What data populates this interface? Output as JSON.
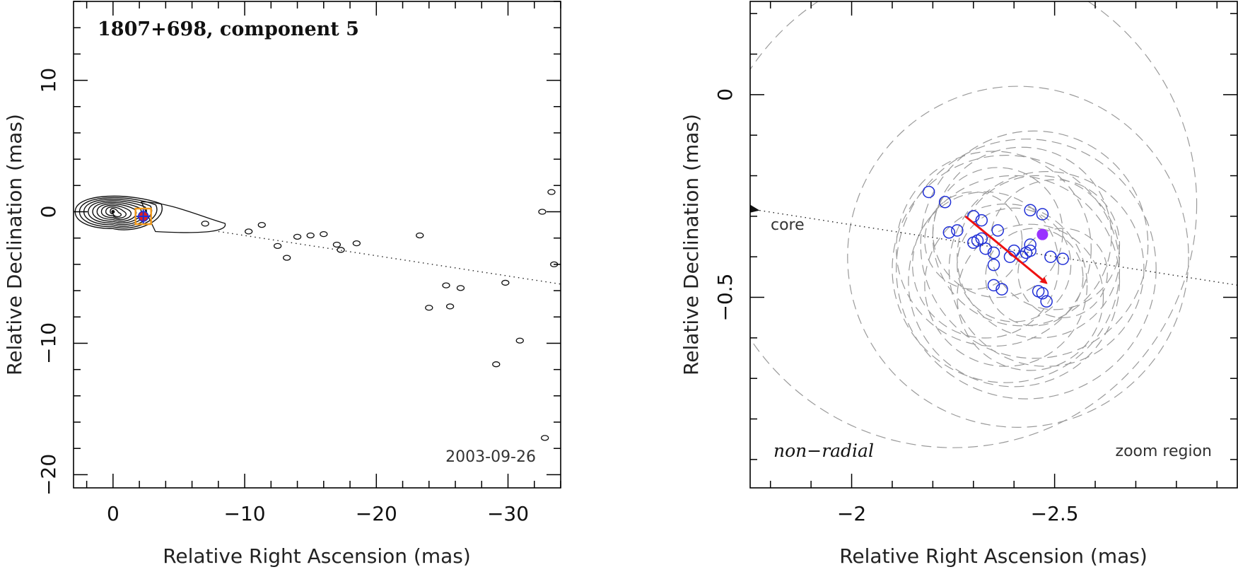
{
  "chart_data": [
    {
      "type": "scatter",
      "panel": "left",
      "title": "1807+698, component 5",
      "xlabel": "Relative Right Ascension (mas)",
      "ylabel": "Relative Declination (mas)",
      "xlim": [
        3,
        -34
      ],
      "ylim": [
        -21,
        16
      ],
      "xticks": [
        0,
        -10,
        -20,
        -30
      ],
      "xtick_labels": [
        "0",
        "−10",
        "−20",
        "−30"
      ],
      "yticks": [
        10,
        0,
        -10,
        -20
      ],
      "ytick_labels": [
        "10",
        "0",
        "−10",
        "−20"
      ],
      "date": "2003-09-26",
      "core_position": [
        0,
        0
      ],
      "component_position": [
        -2.3,
        -0.35
      ],
      "jet_direction_line": {
        "from": [
          -8,
          -1.5
        ],
        "to": [
          -34,
          -5.5
        ]
      },
      "contour_levels": 9,
      "jet_knots": [
        {
          "x": -7.0,
          "y": -0.9
        },
        {
          "x": -10.3,
          "y": -1.5
        },
        {
          "x": -11.3,
          "y": -1.0
        },
        {
          "x": -12.5,
          "y": -2.6
        },
        {
          "x": -13.2,
          "y": -3.5
        },
        {
          "x": -14.0,
          "y": -1.9
        },
        {
          "x": -15.0,
          "y": -1.8
        },
        {
          "x": -16.0,
          "y": -1.7
        },
        {
          "x": -17.0,
          "y": -2.5
        },
        {
          "x": -17.3,
          "y": -2.9
        },
        {
          "x": -18.5,
          "y": -2.4
        },
        {
          "x": -23.3,
          "y": -1.8
        },
        {
          "x": -24.0,
          "y": -7.3
        },
        {
          "x": -25.3,
          "y": -5.6
        },
        {
          "x": -26.4,
          "y": -5.8
        },
        {
          "x": -25.6,
          "y": -7.2
        },
        {
          "x": -29.8,
          "y": -5.4
        },
        {
          "x": -30.9,
          "y": -9.8
        },
        {
          "x": -29.1,
          "y": -11.6
        },
        {
          "x": -32.8,
          "y": -17.2
        },
        {
          "x": -33.5,
          "y": -4.0
        },
        {
          "x": -33.3,
          "y": 1.5
        },
        {
          "x": -32.6,
          "y": 0.0
        }
      ]
    },
    {
      "type": "scatter",
      "panel": "right",
      "xlabel": "Relative Right Ascension (mas)",
      "ylabel": "Relative Declination (mas)",
      "xlim": [
        -1.75,
        -2.95
      ],
      "ylim": [
        -0.97,
        0.23
      ],
      "xticks": [
        -2,
        -2.5
      ],
      "xtick_labels": [
        "−2",
        "−2.5"
      ],
      "yticks": [
        0,
        -0.5
      ],
      "ytick_labels": [
        "0",
        "−0.5"
      ],
      "annotation_left": "non−radial",
      "annotation_right": "zoom region",
      "core_label": "core",
      "core_direction_line": {
        "from": [
          -2.95,
          -0.47
        ],
        "to": [
          -1.77,
          -0.285
        ]
      },
      "component_positions": [
        {
          "x": -2.19,
          "y": -0.24
        },
        {
          "x": -2.23,
          "y": -0.265
        },
        {
          "x": -2.24,
          "y": -0.34
        },
        {
          "x": -2.26,
          "y": -0.335
        },
        {
          "x": -2.3,
          "y": -0.3
        },
        {
          "x": -2.32,
          "y": -0.31
        },
        {
          "x": -2.3,
          "y": -0.365
        },
        {
          "x": -2.31,
          "y": -0.36
        },
        {
          "x": -2.32,
          "y": -0.355
        },
        {
          "x": -2.33,
          "y": -0.38
        },
        {
          "x": -2.35,
          "y": -0.39
        },
        {
          "x": -2.36,
          "y": -0.335
        },
        {
          "x": -2.35,
          "y": -0.42
        },
        {
          "x": -2.39,
          "y": -0.4
        },
        {
          "x": -2.4,
          "y": -0.385
        },
        {
          "x": -2.42,
          "y": -0.4
        },
        {
          "x": -2.43,
          "y": -0.39
        },
        {
          "x": -2.44,
          "y": -0.385
        },
        {
          "x": -2.44,
          "y": -0.37
        },
        {
          "x": -2.44,
          "y": -0.285
        },
        {
          "x": -2.47,
          "y": -0.295
        },
        {
          "x": -2.35,
          "y": -0.47
        },
        {
          "x": -2.37,
          "y": -0.48
        },
        {
          "x": -2.46,
          "y": -0.485
        },
        {
          "x": -2.47,
          "y": -0.49
        },
        {
          "x": -2.48,
          "y": -0.51
        },
        {
          "x": -2.49,
          "y": -0.4
        },
        {
          "x": -2.52,
          "y": -0.405
        }
      ],
      "mean_position": {
        "x": -2.47,
        "y": -0.345,
        "color": "#9933ff"
      },
      "motion_vector": {
        "from": [
          -2.28,
          -0.3
        ],
        "to": [
          -2.48,
          -0.465
        ],
        "color": "#ee1111"
      },
      "uncertainty_ellipses": [
        {
          "x": -2.41,
          "y": -0.4,
          "r": 0.42
        },
        {
          "x": -2.43,
          "y": -0.43,
          "r": 0.32
        },
        {
          "x": -2.38,
          "y": -0.43,
          "r": 0.28
        },
        {
          "x": -2.45,
          "y": -0.37,
          "r": 0.28
        },
        {
          "x": -2.4,
          "y": -0.46,
          "r": 0.26
        },
        {
          "x": -2.35,
          "y": -0.38,
          "r": 0.24
        },
        {
          "x": -2.48,
          "y": -0.43,
          "r": 0.24
        },
        {
          "x": -2.42,
          "y": -0.35,
          "r": 0.22
        },
        {
          "x": -2.38,
          "y": -0.47,
          "r": 0.2
        },
        {
          "x": -2.46,
          "y": -0.4,
          "r": 0.2
        },
        {
          "x": -2.33,
          "y": -0.42,
          "r": 0.18
        },
        {
          "x": -2.44,
          "y": -0.5,
          "r": 0.18
        },
        {
          "x": -2.5,
          "y": -0.37,
          "r": 0.16
        },
        {
          "x": -2.36,
          "y": -0.34,
          "r": 0.16
        },
        {
          "x": -2.4,
          "y": -0.42,
          "r": 0.14
        },
        {
          "x": -2.45,
          "y": -0.45,
          "r": 0.12
        },
        {
          "x": -2.3,
          "y": -0.36,
          "r": 0.12
        },
        {
          "x": -2.52,
          "y": -0.44,
          "r": 0.11
        },
        {
          "x": -2.25,
          "y": -0.27,
          "r": 0.6
        }
      ]
    }
  ],
  "colors": {
    "axes": "#000000",
    "contour": "#111111",
    "component_marker": "#1f2fd6",
    "ellipse": "#9a9a9a",
    "orange_box": "#f29a1c",
    "red_arrow": "#ee1111",
    "purple_dot": "#9933ff"
  }
}
